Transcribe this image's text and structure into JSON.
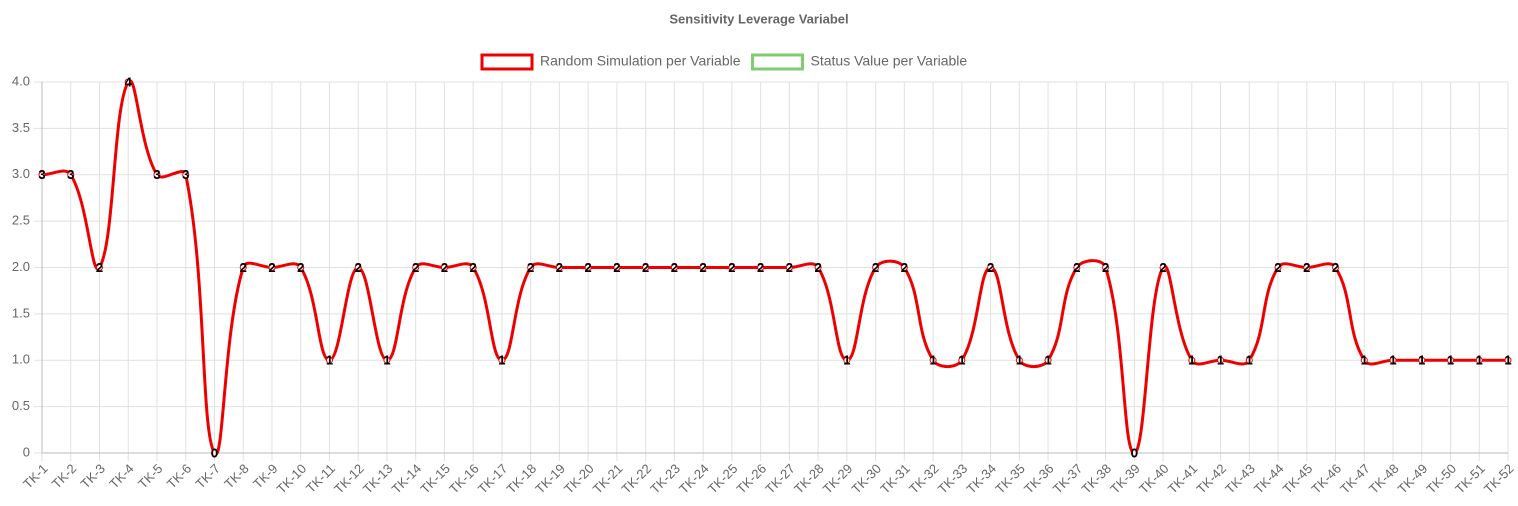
{
  "chart_data": {
    "type": "line",
    "title": "Sensitivity Leverage Variabel",
    "categories": [
      "TK-1",
      "TK-2",
      "TK-3",
      "TK-4",
      "TK-5",
      "TK-6",
      "TK-7",
      "TK-8",
      "TK-9",
      "TK-10",
      "TK-11",
      "TK-12",
      "TK-13",
      "TK-14",
      "TK-15",
      "TK-16",
      "TK-17",
      "TK-18",
      "TK-19",
      "TK-20",
      "TK-21",
      "TK-22",
      "TK-23",
      "TK-24",
      "TK-25",
      "TK-26",
      "TK-27",
      "TK-28",
      "TK-29",
      "TK-30",
      "TK-31",
      "TK-32",
      "TK-33",
      "TK-34",
      "TK-35",
      "TK-36",
      "TK-37",
      "TK-38",
      "TK-39",
      "TK-40",
      "TK-41",
      "TK-42",
      "TK-43",
      "TK-44",
      "TK-45",
      "TK-46",
      "TK-47",
      "TK-48",
      "TK-49",
      "TK-50",
      "TK-51",
      "TK-52"
    ],
    "series": [
      {
        "name": "Random Simulation per Variable",
        "color": "#ee0000",
        "values": [
          3,
          3,
          2,
          4,
          3,
          3,
          0,
          2,
          2,
          2,
          1,
          2,
          1,
          2,
          2,
          2,
          1,
          2,
          2,
          2,
          2,
          2,
          2,
          2,
          2,
          2,
          2,
          2,
          1,
          2,
          2,
          1,
          1,
          2,
          1,
          1,
          2,
          2,
          0,
          2,
          1,
          1,
          1,
          2,
          2,
          2,
          1,
          1,
          1,
          1,
          1,
          1
        ]
      },
      {
        "name": "Status Value per Variable",
        "color": "#80cc70",
        "values": [
          null,
          null,
          null,
          null,
          null,
          null,
          null,
          null,
          null,
          null,
          null,
          null,
          null,
          null,
          null,
          null,
          null,
          null,
          null,
          null,
          null,
          null,
          null,
          null,
          null,
          null,
          null,
          null,
          null,
          null,
          null,
          null,
          null,
          null,
          null,
          null,
          null,
          null,
          null,
          null,
          null,
          null,
          null,
          null,
          null,
          null,
          null,
          null,
          null,
          null,
          null,
          null
        ]
      }
    ],
    "ylim": [
      0,
      4
    ],
    "yticks": [
      0,
      0.5,
      {
        "value": 1,
        "label": "1.0"
      },
      1.5,
      {
        "value": 2,
        "label": "2.0"
      },
      2.5,
      {
        "value": 3,
        "label": "3.0"
      },
      3.5,
      {
        "value": 4,
        "label": "4.0"
      }
    ],
    "grid": true,
    "legend": "top",
    "data_labels": true
  }
}
